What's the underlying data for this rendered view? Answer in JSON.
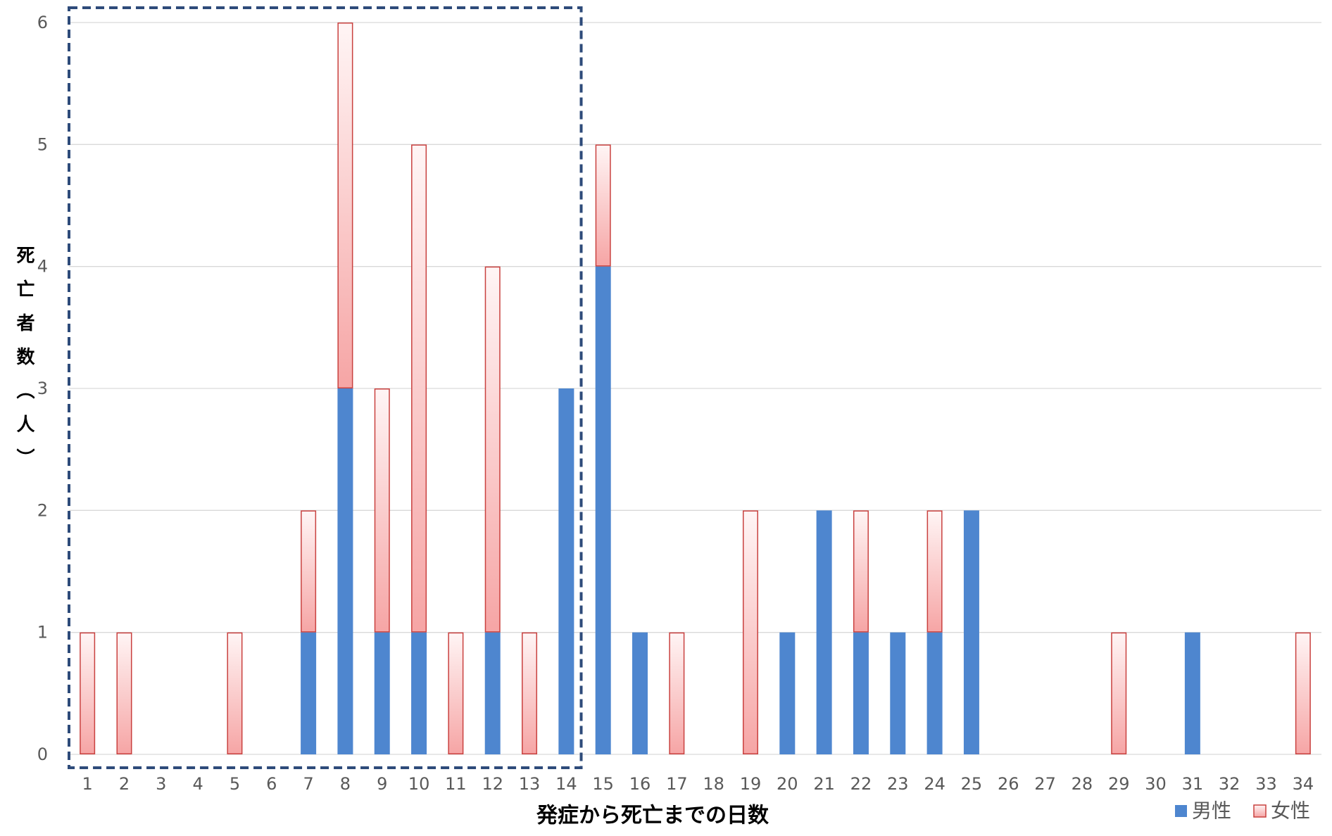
{
  "chart_data": {
    "type": "bar",
    "stacked": true,
    "categories": [
      "1",
      "2",
      "3",
      "4",
      "5",
      "6",
      "7",
      "8",
      "9",
      "10",
      "11",
      "12",
      "13",
      "14",
      "15",
      "16",
      "17",
      "18",
      "19",
      "20",
      "21",
      "22",
      "23",
      "24",
      "25",
      "26",
      "27",
      "28",
      "29",
      "30",
      "31",
      "32",
      "33",
      "34"
    ],
    "series": [
      {
        "name": "男性",
        "values": [
          0,
          0,
          0,
          0,
          0,
          0,
          1,
          3,
          1,
          1,
          0,
          1,
          0,
          3,
          4,
          1,
          0,
          0,
          0,
          1,
          2,
          1,
          1,
          1,
          2,
          0,
          0,
          0,
          0,
          0,
          1,
          0,
          0,
          0
        ]
      },
      {
        "name": "女性",
        "values": [
          1,
          1,
          0,
          0,
          1,
          0,
          1,
          3,
          2,
          4,
          1,
          3,
          1,
          0,
          1,
          0,
          1,
          0,
          2,
          0,
          0,
          1,
          0,
          1,
          0,
          0,
          0,
          0,
          1,
          0,
          0,
          0,
          0,
          1
        ]
      }
    ],
    "xlabel": "発症から死亡までの日数",
    "ylabel": "死亡者数（人）",
    "ylim": [
      0,
      6
    ],
    "yticks": [
      "0",
      "1",
      "2",
      "3",
      "4",
      "5",
      "6"
    ],
    "grid": "horizontal",
    "legend": "bottom-right",
    "highlight_days": [
      1,
      14
    ]
  },
  "colors": {
    "male": "#4E86CF",
    "female_border": "#C9413F",
    "female_fill_top": "#FFF5F5",
    "female_fill_bottom": "#F6A5A5",
    "grid": "#D9D9D9",
    "tick_text": "#595959",
    "legend_text": "#595959",
    "highlight_box": "#2E4B7A"
  }
}
